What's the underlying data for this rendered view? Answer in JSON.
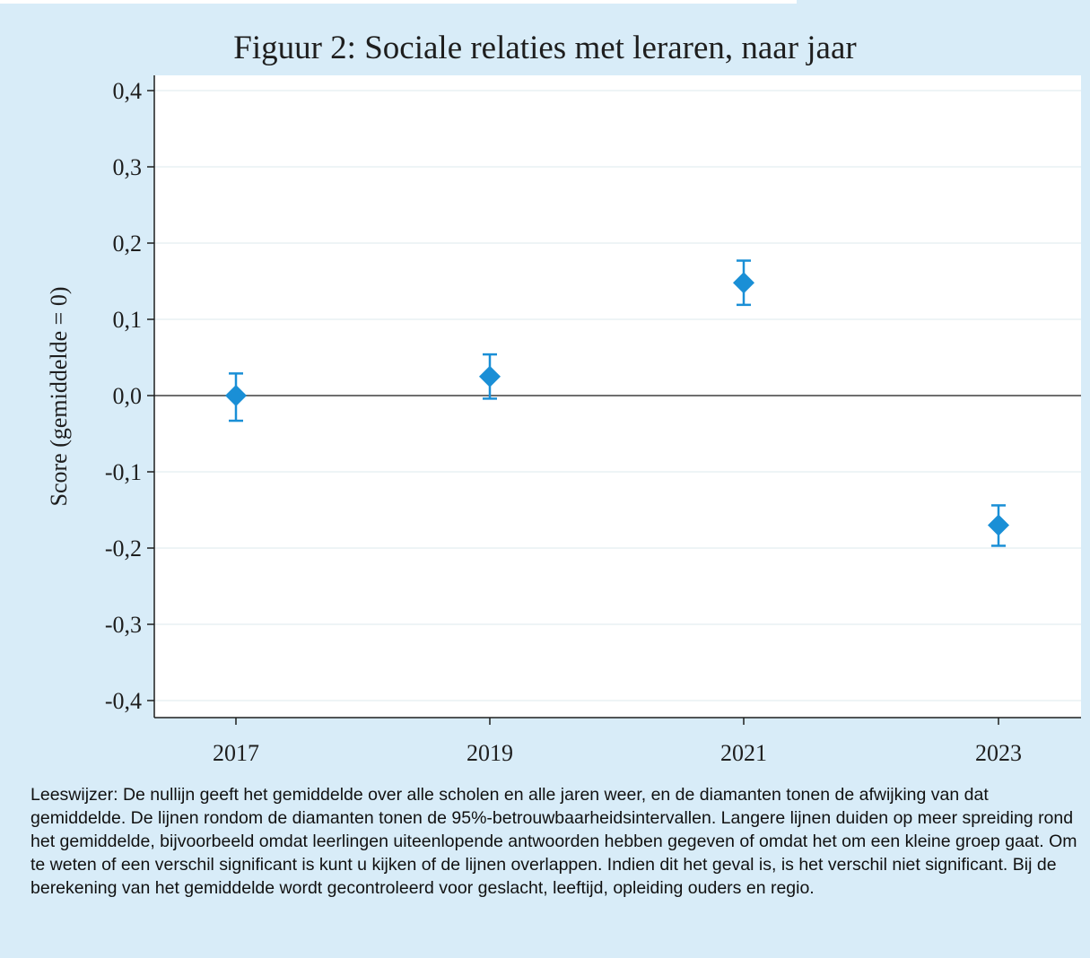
{
  "chart_data": {
    "type": "scatter",
    "title": "Figuur 2: Sociale relaties met leraren, naar jaar",
    "xlabel": "",
    "ylabel": "Score (gemiddelde = 0)",
    "categories": [
      "2017",
      "2019",
      "2021",
      "2023"
    ],
    "series": [
      {
        "values": [
          0.0,
          0.025,
          0.148,
          -0.17
        ],
        "ci_lower": [
          -0.033,
          -0.004,
          0.119,
          -0.197
        ],
        "ci_upper": [
          0.029,
          0.054,
          0.177,
          -0.144
        ]
      }
    ],
    "ylim": [
      -0.42,
      0.42
    ],
    "yticks": [
      0.4,
      0.3,
      0.2,
      0.1,
      0.0,
      -0.1,
      -0.2,
      -0.3,
      -0.4
    ],
    "ytick_labels": [
      "0,4",
      "0,3",
      "0,2",
      "0,1",
      "0,0",
      "-0,1",
      "-0,2",
      "-0,3",
      "-0,4"
    ],
    "reference_line": 0,
    "grid": true,
    "marker": "diamond",
    "marker_color": "#1a8fd6"
  },
  "footnote": "Leeswijzer: De nullijn geeft het gemiddelde over alle scholen en alle jaren weer, en de diamanten tonen de afwijking van dat gemiddelde. De lijnen rondom de diamanten tonen de 95%-betrouwbaarheidsintervallen. Langere lijnen duiden op meer spreiding rond het gemiddelde, bijvoorbeeld omdat leerlingen uiteenlopende antwoorden hebben gegeven of omdat het om een kleine groep gaat. Om te weten of een verschil significant is kunt u kijken of de lijnen overlappen. Indien dit het geval is, is het verschil niet significant. Bij de berekening van het gemiddelde wordt gecontroleerd voor geslacht, leeftijd, opleiding ouders en regio."
}
